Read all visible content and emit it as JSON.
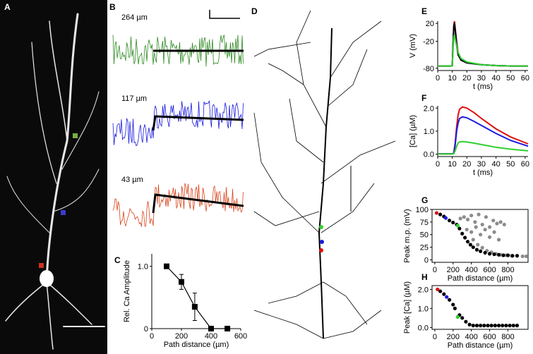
{
  "panel_labels": [
    "A",
    "B",
    "C",
    "D",
    "E",
    "F",
    "G",
    "H"
  ],
  "panel_b": {
    "traces": [
      {
        "label": "264 µm",
        "color": "#2e8b22"
      },
      {
        "label": "117 µm",
        "color": "#1a1ae0"
      },
      {
        "label": "43 µm",
        "color": "#d8431a"
      }
    ]
  },
  "chart_data": [
    {
      "type": "errorbar",
      "xlabel": "Path distance (µm)",
      "ylabel": "Rel. Ca Amplitude",
      "x": [
        100,
        200,
        290,
        400,
        510
      ],
      "values": [
        1.0,
        0.75,
        0.35,
        0,
        0
      ],
      "errors": [
        0,
        0.12,
        0.22,
        0,
        0
      ],
      "color": "#000000",
      "xlim": [
        0,
        600
      ],
      "xticks": [
        0,
        200,
        400,
        600
      ],
      "ylim": [
        0,
        1.2
      ],
      "yticks": [
        0,
        {
          "value": 1,
          "label": "1.0"
        }
      ],
      "box": false
    },
    {
      "type": "line",
      "xlabel": "t (ms)",
      "ylabel": "V (mV)",
      "x": [
        0,
        9,
        10,
        11,
        11.5,
        12,
        13,
        14,
        16,
        20,
        30,
        40,
        50,
        62
      ],
      "series": [
        {
          "color": "#e01010",
          "values": [
            -75,
            -75,
            -74,
            15,
            25,
            10,
            -20,
            -45,
            -60,
            -67,
            -72,
            -74,
            -75,
            -75
          ]
        },
        {
          "color": "#1a1ae0",
          "values": [
            -75,
            -75,
            -74,
            12,
            20,
            5,
            -25,
            -48,
            -61,
            -68,
            -72,
            -74,
            -75,
            -75
          ]
        },
        {
          "color": "#000000",
          "values": [
            -75,
            -75,
            -74,
            10,
            22,
            5,
            -30,
            -50,
            -62,
            -68,
            -72,
            -74,
            -75,
            -75
          ]
        },
        {
          "color": "#30d030",
          "values": [
            -75,
            -75,
            -74,
            -10,
            -5,
            -15,
            -30,
            -45,
            -58,
            -66,
            -72,
            -74,
            -75,
            -75
          ]
        }
      ],
      "xlim": [
        0,
        62
      ],
      "xticks": [
        0,
        10,
        20,
        30,
        40,
        50,
        60
      ],
      "ylim": [
        -85,
        25
      ],
      "yticks": [
        -80,
        -20,
        20
      ],
      "box": false
    },
    {
      "type": "line",
      "xlabel": "t (ms)",
      "ylabel": "[Ca] (µM)",
      "x": [
        0,
        10,
        11,
        12,
        13,
        14,
        15,
        17,
        20,
        25,
        30,
        40,
        50,
        62
      ],
      "series": [
        {
          "color": "#e01010",
          "values": [
            0.02,
            0.02,
            0.05,
            0.5,
            1.2,
            1.7,
            1.95,
            2.05,
            2.0,
            1.8,
            1.55,
            1.1,
            0.75,
            0.45
          ]
        },
        {
          "color": "#1a1ae0",
          "values": [
            0.02,
            0.02,
            0.04,
            0.4,
            1.0,
            1.35,
            1.55,
            1.62,
            1.58,
            1.42,
            1.25,
            0.9,
            0.6,
            0.35
          ]
        },
        {
          "color": "#30d030",
          "values": [
            0.01,
            0.01,
            0.02,
            0.15,
            0.35,
            0.48,
            0.53,
            0.55,
            0.53,
            0.48,
            0.42,
            0.3,
            0.22,
            0.15
          ]
        }
      ],
      "xlim": [
        0,
        62
      ],
      "xticks": [
        0,
        10,
        20,
        30,
        40,
        50,
        60
      ],
      "ylim": [
        -0.1,
        2.1
      ],
      "yticks": [
        {
          "value": 0,
          "label": "0.0"
        },
        {
          "value": 1,
          "label": "1.0"
        },
        {
          "value": 2,
          "label": "2.0"
        }
      ],
      "box": false
    },
    {
      "type": "scatter",
      "xlabel": "Path distance (µm)",
      "ylabel": "Peak m.p. (mV)",
      "series": [
        {
          "color": "#8c8c8c",
          "x": [
            280,
            320,
            360,
            400,
            440,
            480,
            520,
            560,
            600,
            640,
            680,
            720,
            760,
            420,
            470,
            520,
            570,
            620,
            670,
            720,
            780,
            840,
            900,
            960,
            1000,
            350,
            400,
            450,
            500,
            550,
            600,
            650,
            700
          ],
          "values": [
            82,
            85,
            80,
            88,
            75,
            90,
            70,
            85,
            65,
            78,
            72,
            75,
            70,
            40,
            30,
            24,
            18,
            15,
            12,
            10,
            9,
            8,
            8,
            7,
            7,
            60,
            55,
            65,
            50,
            60,
            45,
            55,
            40
          ]
        },
        {
          "color": "#000000",
          "x": [
            60,
            100,
            160,
            200,
            240,
            270,
            300,
            330,
            360,
            390,
            420,
            460,
            500,
            550,
            600,
            650,
            700,
            750,
            800,
            850,
            900
          ],
          "values": [
            90,
            86,
            78,
            74,
            70,
            62,
            52,
            44,
            36,
            30,
            25,
            20,
            17,
            14,
            12,
            11,
            10,
            9,
            9,
            8,
            8
          ]
        },
        {
          "color": "#e01010",
          "x": [
            20
          ],
          "values": [
            93
          ]
        },
        {
          "color": "#1a1ae0",
          "x": [
            120
          ],
          "values": [
            83
          ]
        },
        {
          "color": "#30d030",
          "x": [
            250
          ],
          "values": [
            68
          ]
        }
      ],
      "xlim": [
        -30,
        1020
      ],
      "xticks": [
        0,
        200,
        400,
        600,
        800
      ],
      "ylim": [
        -5,
        100
      ],
      "yticks": [
        0,
        25,
        50,
        75,
        100
      ],
      "box": true
    },
    {
      "type": "scatter",
      "xlabel": "Path distance (µm)",
      "ylabel": "Peak [Ca] (µM)",
      "series": [
        {
          "color": "#000000",
          "x": [
            60,
            100,
            160,
            200,
            220,
            270,
            300,
            340,
            380,
            420,
            460,
            500,
            540,
            580,
            620,
            660,
            700,
            740,
            780,
            820,
            860,
            900
          ],
          "values": [
            1.9,
            1.75,
            1.45,
            1.2,
            1.0,
            0.65,
            0.5,
            0.3,
            0.15,
            0.1,
            0.1,
            0.1,
            0.1,
            0.1,
            0.1,
            0.1,
            0.1,
            0.1,
            0.1,
            0.1,
            0.1,
            0.1
          ]
        },
        {
          "color": "#e01010",
          "x": [
            30
          ],
          "values": [
            2.0
          ]
        },
        {
          "color": "#1a1ae0",
          "x": [
            130
          ],
          "values": [
            1.6
          ]
        },
        {
          "color": "#30d030",
          "x": [
            250
          ],
          "values": [
            0.55
          ]
        }
      ],
      "xlim": [
        -30,
        1020
      ],
      "xticks": [
        0,
        200,
        400,
        600,
        800
      ],
      "ylim": [
        -0.1,
        2.2
      ],
      "yticks": [
        {
          "value": 0,
          "label": "0.0"
        },
        {
          "value": 1,
          "label": "1.0"
        },
        {
          "value": 2,
          "label": "2.0"
        }
      ],
      "box": true
    }
  ]
}
